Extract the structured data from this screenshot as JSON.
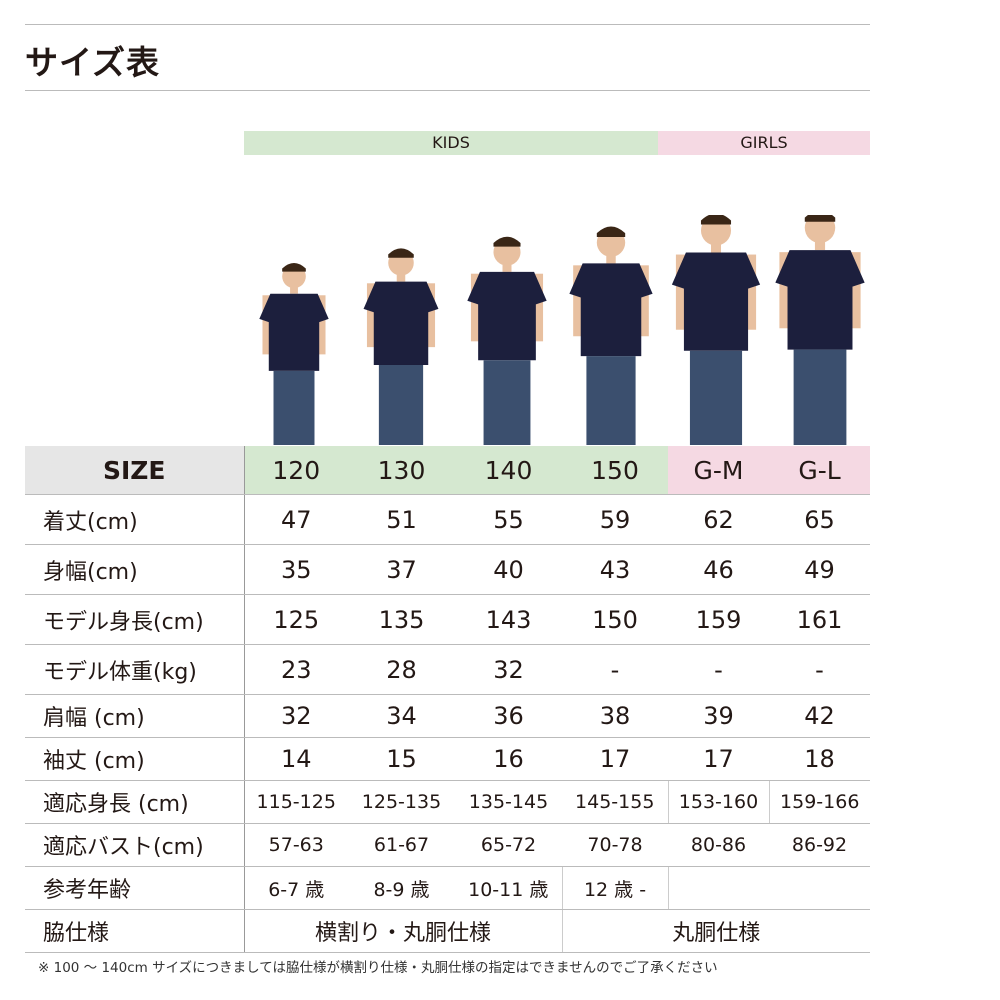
{
  "title": "サイズ表",
  "groups": {
    "kids": "KIDS",
    "girls": "GIRLS"
  },
  "colors": {
    "kids": "#d5e8d0",
    "girls": "#f5d9e3",
    "shirt": "#1c1f3d",
    "jeans": "#3b4f6e"
  },
  "size_label": "SIZE",
  "sizes": [
    "120",
    "130",
    "140",
    "150",
    "G-M",
    "G-L"
  ],
  "rows": [
    {
      "label": "着丈(cm)",
      "values": [
        "47",
        "51",
        "55",
        "59",
        "62",
        "65"
      ]
    },
    {
      "label": "身幅(cm)",
      "values": [
        "35",
        "37",
        "40",
        "43",
        "46",
        "49"
      ]
    },
    {
      "label": "モデル身長(cm)",
      "values": [
        "125",
        "135",
        "143",
        "150",
        "159",
        "161"
      ]
    },
    {
      "label": "モデル体重(kg)",
      "values": [
        "23",
        "28",
        "32",
        "-",
        "-",
        "-"
      ]
    },
    {
      "label": "肩幅 (cm)",
      "values": [
        "32",
        "34",
        "36",
        "38",
        "39",
        "42"
      ]
    },
    {
      "label": "袖丈 (cm)",
      "values": [
        "14",
        "15",
        "16",
        "17",
        "17",
        "18"
      ]
    },
    {
      "label": "適応身長 (cm)",
      "values": [
        "115-125",
        "125-135",
        "135-145",
        "145-155",
        "153-160",
        "159-166"
      ]
    },
    {
      "label": "適応バスト(cm)",
      "values": [
        "57-63",
        "61-67",
        "65-72",
        "70-78",
        "80-86",
        "86-92"
      ]
    }
  ],
  "age": {
    "label": "参考年齢",
    "values": [
      "6-7 歳",
      "8-9 歳",
      "10-11 歳",
      "12 歳 -"
    ]
  },
  "side": {
    "label": "脇仕様",
    "kids": "横割り・丸胴仕様",
    "girls": "丸胴仕様"
  },
  "note": "※ 100 ～ 140cm サイズにつきましては脇仕様が横割り仕様・丸胴仕様の指定はできませんのでご了承ください"
}
